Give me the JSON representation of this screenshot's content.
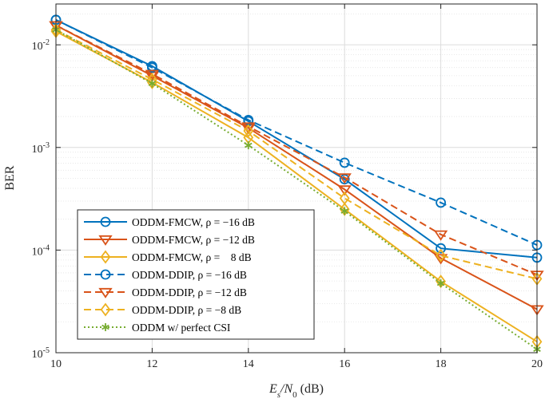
{
  "chart_data": {
    "type": "line",
    "xlabel_parts": [
      "E",
      "s",
      "/N",
      "0",
      " (dB)"
    ],
    "ylabel": "BER",
    "x_scale": "linear",
    "y_scale": "log",
    "xlim": [
      10,
      20
    ],
    "ylim": [
      1e-05,
      0.025
    ],
    "grid": true,
    "legend_position": "bottom-left",
    "x_ticks": [
      10,
      12,
      14,
      16,
      18,
      20
    ],
    "x_tick_labels": [
      "10",
      "12",
      "14",
      "16",
      "18",
      "20"
    ],
    "y_ticks": [
      1e-05,
      0.0001,
      0.001,
      0.01
    ],
    "y_tick_labels": [
      {
        "base": "10",
        "exp": "-5"
      },
      {
        "base": "10",
        "exp": "-4"
      },
      {
        "base": "10",
        "exp": "-3"
      },
      {
        "base": "10",
        "exp": "-2"
      }
    ],
    "x": [
      10,
      12,
      14,
      16,
      18,
      20
    ],
    "series": [
      {
        "name": "ODDM-FMCW, ρ = −16 dB",
        "color": "#0072BD",
        "dash": "solid",
        "marker": "circle",
        "values": [
          0.0175,
          0.0062,
          0.0018,
          0.00049,
          0.000104,
          8.45e-05
        ]
      },
      {
        "name": "ODDM-FMCW, ρ = −12 dB",
        "color": "#D95319",
        "dash": "solid",
        "marker": "triangle-down",
        "values": [
          0.0155,
          0.005,
          0.00155,
          0.00039,
          8.35e-05,
          2.65e-05
        ]
      },
      {
        "name": "ODDM-FMCW, ρ =    8 dB",
        "color": "#EDB120",
        "dash": "solid",
        "marker": "diamond",
        "values": [
          0.0135,
          0.0043,
          0.00125,
          0.00025,
          4.95e-05,
          1.28e-05
        ]
      },
      {
        "name": "ODDM-DDIP, ρ = −16 dB",
        "color": "#0072BD",
        "dash": "dashed",
        "marker": "circle",
        "values": [
          0.0175,
          0.006,
          0.00185,
          0.00071,
          0.00029,
          0.000112
        ]
      },
      {
        "name": "ODDM-DDIP, ρ = −12 dB",
        "color": "#D95319",
        "dash": "dashed",
        "marker": "triangle-down",
        "values": [
          0.0155,
          0.0052,
          0.0016,
          0.00051,
          0.000142,
          5.75e-05
        ]
      },
      {
        "name": "ODDM-DDIP, ρ = −8 dB",
        "color": "#EDB120",
        "dash": "dashed",
        "marker": "diamond",
        "values": [
          0.014,
          0.0046,
          0.00145,
          0.00032,
          8.85e-05,
          5.25e-05
        ]
      },
      {
        "name": "ODDM w/ perfect CSI",
        "color": "#77AC30",
        "dash": "dotted",
        "marker": "asterisk",
        "values": [
          0.014,
          0.0042,
          0.00105,
          0.00024,
          4.75e-05,
          1.08e-05
        ]
      }
    ]
  }
}
